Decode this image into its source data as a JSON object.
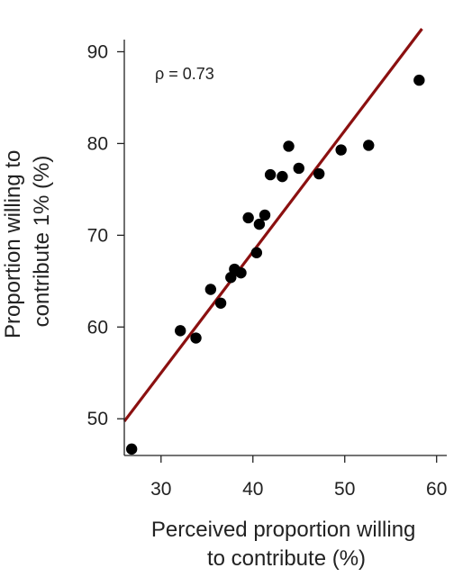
{
  "chart_data": {
    "type": "scatter",
    "title": "",
    "xlabel_lines": [
      "Perceived proportion willing",
      "to contribute (%)"
    ],
    "ylabel_lines": [
      "Proportion willing to",
      "contribute 1% (%)"
    ],
    "xlim": [
      26,
      61.5
    ],
    "ylim": [
      46,
      92.5
    ],
    "xticks": [
      30,
      40,
      50,
      60
    ],
    "yticks": [
      50,
      60,
      70,
      80,
      90
    ],
    "xtick_labels": [
      "30",
      "40",
      "50",
      "60"
    ],
    "ytick_labels": [
      "50",
      "60",
      "70",
      "80",
      "90"
    ],
    "grid": false,
    "annotation": "ρ = 0.73",
    "colors": {
      "points": "#000000",
      "fit_line": "#8b1010",
      "axes": "#222222"
    },
    "fit_line": {
      "slope": 1.32,
      "intercept": 15.4
    },
    "points": [
      {
        "x": 26.8,
        "y": 46.7
      },
      {
        "x": 32.1,
        "y": 59.6
      },
      {
        "x": 33.8,
        "y": 58.8
      },
      {
        "x": 35.4,
        "y": 64.1
      },
      {
        "x": 36.5,
        "y": 62.6
      },
      {
        "x": 37.6,
        "y": 65.4
      },
      {
        "x": 38.0,
        "y": 66.3
      },
      {
        "x": 38.7,
        "y": 65.9
      },
      {
        "x": 39.5,
        "y": 71.9
      },
      {
        "x": 40.4,
        "y": 68.1
      },
      {
        "x": 40.7,
        "y": 71.2
      },
      {
        "x": 41.3,
        "y": 72.2
      },
      {
        "x": 41.9,
        "y": 76.6
      },
      {
        "x": 43.2,
        "y": 76.4
      },
      {
        "x": 43.9,
        "y": 79.7
      },
      {
        "x": 45.0,
        "y": 77.3
      },
      {
        "x": 47.2,
        "y": 76.7
      },
      {
        "x": 49.6,
        "y": 79.3
      },
      {
        "x": 52.6,
        "y": 79.8
      },
      {
        "x": 58.1,
        "y": 86.9
      }
    ]
  }
}
